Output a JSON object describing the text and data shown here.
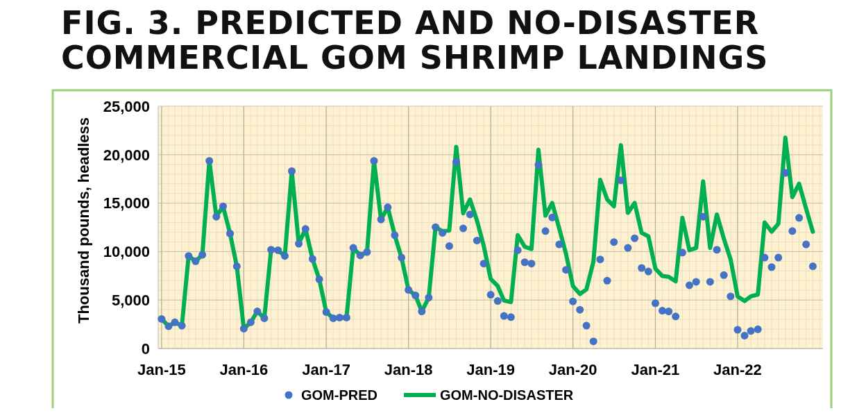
{
  "chart_data": {
    "type": "line",
    "title": "FIG. 3. PREDICTED AND NO-DISASTER COMMERCIAL GOM SHRIMP LANDINGS",
    "ylabel": "Thousand pounds, headless",
    "x": [
      "2015-01",
      "2015-02",
      "2015-03",
      "2015-04",
      "2015-05",
      "2015-06",
      "2015-07",
      "2015-08",
      "2015-09",
      "2015-10",
      "2015-11",
      "2015-12",
      "2016-01",
      "2016-02",
      "2016-03",
      "2016-04",
      "2016-05",
      "2016-06",
      "2016-07",
      "2016-08",
      "2016-09",
      "2016-10",
      "2016-11",
      "2016-12",
      "2017-01",
      "2017-02",
      "2017-03",
      "2017-04",
      "2017-05",
      "2017-06",
      "2017-07",
      "2017-08",
      "2017-09",
      "2017-10",
      "2017-11",
      "2017-12",
      "2018-01",
      "2018-02",
      "2018-03",
      "2018-04",
      "2018-05",
      "2018-06",
      "2018-07",
      "2018-08",
      "2018-09",
      "2018-10",
      "2018-11",
      "2018-12",
      "2019-01",
      "2019-02",
      "2019-03",
      "2019-04",
      "2019-05",
      "2019-06",
      "2019-07",
      "2019-08",
      "2019-09",
      "2019-10",
      "2019-11",
      "2019-12",
      "2020-01",
      "2020-02",
      "2020-03",
      "2020-04",
      "2020-05",
      "2020-06",
      "2020-07",
      "2020-08",
      "2020-09",
      "2020-10",
      "2020-11",
      "2020-12",
      "2021-01",
      "2021-02",
      "2021-03",
      "2021-04",
      "2021-05",
      "2021-06",
      "2021-07",
      "2021-08",
      "2021-09",
      "2021-10",
      "2021-11",
      "2021-12",
      "2022-01",
      "2022-02",
      "2022-03",
      "2022-04",
      "2022-05",
      "2022-06",
      "2022-07",
      "2022-08",
      "2022-09",
      "2022-10",
      "2022-11",
      "2022-12"
    ],
    "series": [
      {
        "name": "GOM-NO-DISASTER",
        "type": "line",
        "color": "#00b050",
        "marker": "none",
        "values": [
          3050,
          2300,
          2700,
          2350,
          9550,
          9000,
          9670,
          19360,
          13600,
          14670,
          11860,
          8480,
          2050,
          2710,
          3830,
          3120,
          10190,
          10140,
          9550,
          18310,
          10810,
          12330,
          9240,
          7140,
          3760,
          3120,
          3190,
          3190,
          10380,
          9600,
          9950,
          19360,
          13310,
          14570,
          11690,
          9380,
          6050,
          5480,
          3830,
          5260,
          12520,
          12100,
          12170,
          20800,
          13950,
          15380,
          13200,
          10600,
          7170,
          6450,
          4950,
          4790,
          11690,
          10500,
          10260,
          20500,
          13710,
          15020,
          12400,
          9790,
          6450,
          5620,
          6100,
          8950,
          17400,
          15380,
          14670,
          20980,
          14000,
          15020,
          11930,
          11570,
          8240,
          7480,
          7400,
          6930,
          13480,
          10140,
          10380,
          17240,
          10380,
          13830,
          11330,
          9190,
          5380,
          4900,
          5380,
          5570,
          13000,
          12050,
          12880,
          21760,
          15620,
          17000,
          14430,
          12050
        ]
      },
      {
        "name": "GOM-PRED",
        "type": "scatter",
        "color": "#4472c4",
        "marker": "circle",
        "values": [
          3050,
          2300,
          2700,
          2350,
          9550,
          9000,
          9670,
          19360,
          13600,
          14670,
          11860,
          8480,
          2050,
          2710,
          3830,
          3120,
          10190,
          10140,
          9550,
          18310,
          10810,
          12330,
          9240,
          7140,
          3760,
          3120,
          3190,
          3190,
          10380,
          9600,
          9950,
          19360,
          13310,
          14570,
          11690,
          9380,
          6050,
          5480,
          3830,
          5260,
          12520,
          11930,
          10570,
          19240,
          12400,
          13830,
          11140,
          8760,
          5550,
          4900,
          3360,
          3240,
          10140,
          8900,
          8760,
          18950,
          12120,
          13520,
          10740,
          8120,
          4860,
          4000,
          2360,
          740,
          9190,
          7000,
          10980,
          17360,
          10380,
          11380,
          8310,
          7950,
          4670,
          3900,
          3830,
          3310,
          9900,
          6520,
          6880,
          13600,
          6880,
          10190,
          7570,
          5380,
          1930,
          1330,
          1810,
          1980,
          9380,
          8400,
          9380,
          18120,
          12120,
          13480,
          10740,
          8480
        ]
      }
    ],
    "xlim": [
      "2014-12-17",
      "2023-01-15"
    ],
    "xticks": [
      {
        "value": "2015-01",
        "label": "Jan-15"
      },
      {
        "value": "2016-01",
        "label": "Jan-16"
      },
      {
        "value": "2017-01",
        "label": "Jan-17"
      },
      {
        "value": "2018-01",
        "label": "Jan-18"
      },
      {
        "value": "2019-01",
        "label": "Jan-19"
      },
      {
        "value": "2020-01",
        "label": "Jan-20"
      },
      {
        "value": "2021-01",
        "label": "Jan-21"
      },
      {
        "value": "2022-01",
        "label": "Jan-22"
      }
    ],
    "ylim": [
      0,
      25000
    ],
    "yticks": [
      {
        "value": 0,
        "label": "0"
      },
      {
        "value": 5000,
        "label": "5,000"
      },
      {
        "value": 10000,
        "label": "10,000"
      },
      {
        "value": 15000,
        "label": "15,000"
      },
      {
        "value": 20000,
        "label": "20,000"
      },
      {
        "value": 25000,
        "label": "25,000"
      }
    ],
    "grid": true,
    "legend": "bottom"
  }
}
